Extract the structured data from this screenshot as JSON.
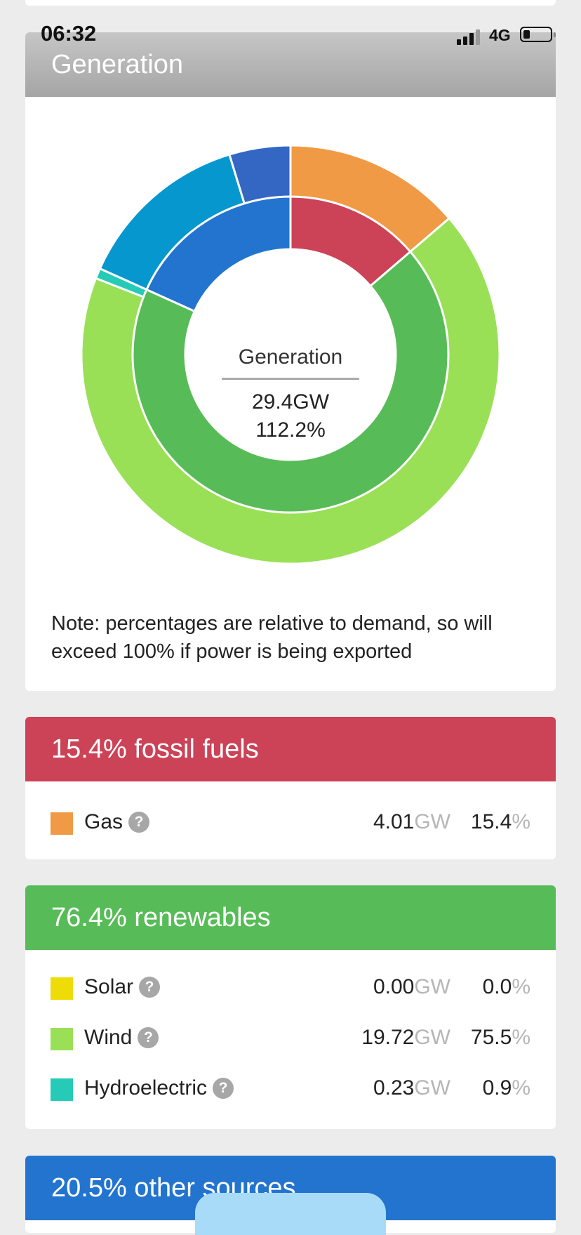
{
  "status_bar": {
    "time": "06:32",
    "network": "4G"
  },
  "generation": {
    "title": "Generation",
    "center": {
      "title": "Generation",
      "total": "29.4GW",
      "percent": "112.2%"
    },
    "note": "Note: percentages are relative to demand, so will exceed 100% if power is being exported"
  },
  "chart_data": {
    "type": "donut",
    "title": "Generation",
    "outer_ring": [
      {
        "name": "Gas",
        "percent": 15.4,
        "color": "#f09a45"
      },
      {
        "name": "Wind",
        "percent": 75.5,
        "color": "#99e056"
      },
      {
        "name": "Hydroelectric",
        "percent": 0.9,
        "color": "#26cbb8"
      },
      {
        "percent": 15.2,
        "color": "#0797cf"
      },
      {
        "percent": 5.3,
        "color": "#3466c3"
      }
    ],
    "inner_ring": [
      {
        "name": "fossil fuels",
        "percent": 15.4,
        "color": "#cc4256"
      },
      {
        "name": "renewables",
        "percent": 76.4,
        "color": "#57bc58"
      },
      {
        "name": "other sources",
        "percent": 20.5,
        "color": "#2374cf"
      }
    ]
  },
  "fossil": {
    "header": "15.4% fossil fuels",
    "rows": [
      {
        "label": "Gas",
        "gw": "4.01",
        "gw_unit": "GW",
        "pct": "15.4",
        "pct_unit": "%",
        "color": "#f09a45"
      }
    ]
  },
  "renewables": {
    "header": "76.4% renewables",
    "rows": [
      {
        "label": "Solar",
        "gw": "0.00",
        "gw_unit": "GW",
        "pct": "0.0",
        "pct_unit": "%",
        "color": "#eddc08"
      },
      {
        "label": "Wind",
        "gw": "19.72",
        "gw_unit": "GW",
        "pct": "75.5",
        "pct_unit": "%",
        "color": "#99e056"
      },
      {
        "label": "Hydroelectric",
        "gw": "0.23",
        "gw_unit": "GW",
        "pct": "0.9",
        "pct_unit": "%",
        "color": "#26cbb8"
      }
    ]
  },
  "other": {
    "header": "20.5% other sources"
  },
  "help_glyph": "?"
}
